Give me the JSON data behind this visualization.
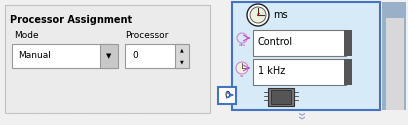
{
  "fig_w": 4.08,
  "fig_h": 1.25,
  "dpi": 100,
  "fig_bg": "#f0f0f0",
  "left_panel": {
    "bg": "#ebebeb",
    "border": "#c0c0c0",
    "title": "Processor Assignment",
    "mode_label": "Mode",
    "mode_value": "Manual",
    "proc_label": "Processor",
    "proc_value": "0"
  },
  "right_panel": {
    "bg_light": "#d6eaf8",
    "bg_strip": "#aed6f1",
    "border_blue": "#4472c4",
    "scrollbar": "#555555",
    "corner_bg": "#a0b8d0",
    "corner_inner": "#d8d8d8"
  }
}
